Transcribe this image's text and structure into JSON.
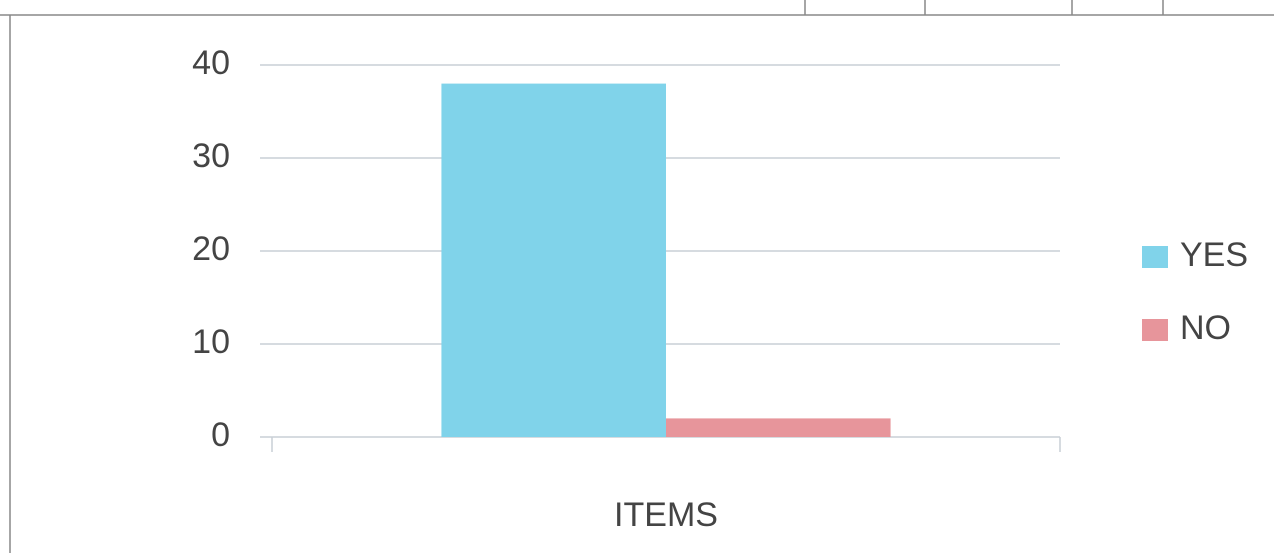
{
  "chart_data": {
    "type": "bar",
    "categories": [
      "ITEMS"
    ],
    "series": [
      {
        "name": "YES",
        "color": "#80d3ea",
        "values": [
          38
        ]
      },
      {
        "name": "NO",
        "color": "#e7959b",
        "values": [
          2
        ]
      }
    ],
    "ylim": [
      0,
      40
    ],
    "yticks": [
      0,
      10,
      20,
      30,
      40
    ],
    "grid": true,
    "legend": "right"
  }
}
